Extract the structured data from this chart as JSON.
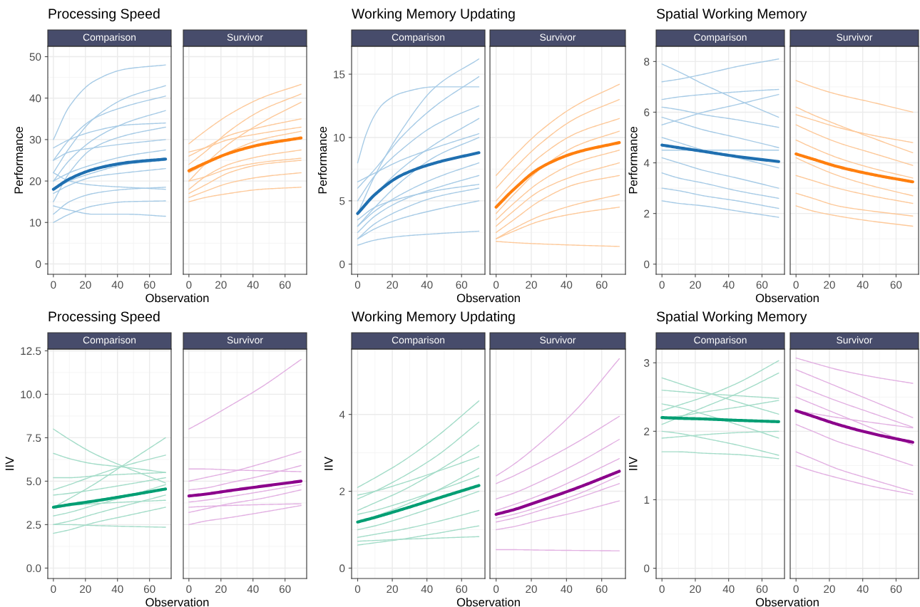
{
  "chart_data": [
    {
      "type": "line",
      "title": "Processing Speed",
      "subtitle": "Comparison",
      "xlabel": "Observation",
      "ylabel": "Performance",
      "x": [
        0,
        10,
        25,
        45,
        70
      ],
      "xlim": [
        -3.5,
        73.5
      ],
      "xticks": [
        0,
        20,
        40,
        60
      ],
      "ylim": [
        -2.5,
        52.5
      ],
      "yticks": [
        0,
        10,
        20,
        30,
        40,
        50
      ],
      "grid": true,
      "series": [
        {
          "color": "#a7cbe6",
          "values": [
            30,
            38,
            44,
            47,
            48
          ]
        },
        {
          "color": "#a7cbe6",
          "values": [
            22,
            28,
            35,
            40,
            43
          ]
        },
        {
          "color": "#a7cbe6",
          "values": [
            25,
            30,
            35,
            38,
            40.5
          ]
        },
        {
          "color": "#a7cbe6",
          "values": [
            20,
            25,
            30,
            34,
            37
          ]
        },
        {
          "color": "#a7cbe6",
          "values": [
            28,
            30,
            32,
            33.5,
            34
          ]
        },
        {
          "color": "#a7cbe6",
          "values": [
            15,
            22,
            28,
            31,
            33
          ]
        },
        {
          "color": "#a7cbe6",
          "values": [
            20,
            22,
            24,
            26,
            27.5
          ]
        },
        {
          "color": "#a7cbe6",
          "values": [
            17,
            19,
            21,
            22,
            23
          ]
        },
        {
          "color": "#a7cbe6",
          "values": [
            12,
            15,
            17,
            18,
            18.5
          ]
        },
        {
          "color": "#a7cbe6",
          "values": [
            10,
            12,
            14,
            15,
            15.2
          ]
        },
        {
          "color": "#a7cbe6",
          "values": [
            14,
            13,
            12,
            12,
            11.5
          ]
        },
        {
          "color": "#a7cbe6",
          "values": [
            22,
            20,
            19,
            18.5,
            18
          ]
        },
        {
          "color": "#a7cbe6",
          "values": [
            18,
            20,
            22,
            24,
            25
          ]
        },
        {
          "color": "#a7cbe6",
          "values": [
            25,
            27,
            28,
            29,
            30
          ]
        },
        {
          "color": "#1f6fb0",
          "values": [
            18,
            20.5,
            22.8,
            24.4,
            25.3
          ]
        }
      ]
    },
    {
      "type": "line",
      "subtitle": "Survivor",
      "x": [
        0,
        10,
        25,
        45,
        70
      ],
      "xlim": [
        -3.5,
        73.5
      ],
      "xticks": [
        0,
        20,
        40,
        60
      ],
      "ylim": [
        -2.5,
        52.5
      ],
      "yticks": [
        0,
        10,
        20,
        30,
        40,
        50
      ],
      "grid": true,
      "tick_labels": "x",
      "series": [
        {
          "color": "#fdc99a",
          "values": [
            29,
            32,
            36,
            40,
            43.3
          ]
        },
        {
          "color": "#fdc99a",
          "values": [
            24,
            27,
            32,
            37,
            41
          ]
        },
        {
          "color": "#fdc99a",
          "values": [
            20,
            24,
            29,
            34,
            39
          ]
        },
        {
          "color": "#fdc99a",
          "values": [
            26,
            28,
            31,
            33,
            35
          ]
        },
        {
          "color": "#fdc99a",
          "values": [
            22,
            24,
            27,
            30,
            32
          ]
        },
        {
          "color": "#fdc99a",
          "values": [
            18,
            21,
            24,
            26,
            27.5
          ]
        },
        {
          "color": "#fdc99a",
          "values": [
            20,
            21,
            23,
            24.5,
            25.5
          ]
        },
        {
          "color": "#fdc99a",
          "values": [
            16,
            17.5,
            19.5,
            21,
            22
          ]
        },
        {
          "color": "#fdc99a",
          "values": [
            15,
            16,
            17,
            18,
            18.5
          ]
        },
        {
          "color": "#fdc99a",
          "values": [
            17,
            19,
            22,
            24,
            25
          ]
        },
        {
          "color": "#fdc99a",
          "values": [
            27,
            28,
            30,
            31.5,
            33
          ]
        },
        {
          "color": "#ff7f0e",
          "values": [
            22.5,
            24.3,
            26.7,
            28.8,
            30.4
          ]
        }
      ]
    },
    {
      "type": "line",
      "title": "Working Memory Updating",
      "subtitle": "Comparison",
      "xlabel": "Observation",
      "ylabel": "Performance",
      "x": [
        0,
        10,
        25,
        45,
        70
      ],
      "xlim": [
        -3.5,
        73.5
      ],
      "xticks": [
        0,
        20,
        40,
        60
      ],
      "ylim": [
        -0.8,
        17.2
      ],
      "yticks": [
        0,
        5,
        10,
        15
      ],
      "grid": true,
      "series": [
        {
          "color": "#a7cbe6",
          "x": [
            0,
            5,
            10,
            15,
            25,
            45,
            70
          ],
          "values": [
            8,
            10.3,
            11.8,
            12.7,
            13.5,
            14,
            14
          ]
        },
        {
          "color": "#a7cbe6",
          "values": [
            4,
            7,
            10.5,
            14,
            16.2
          ]
        },
        {
          "color": "#a7cbe6",
          "values": [
            6,
            7.5,
            10,
            12.5,
            14.8
          ]
        },
        {
          "color": "#a7cbe6",
          "values": [
            5,
            7,
            9,
            11,
            12.5
          ]
        },
        {
          "color": "#a7cbe6",
          "values": [
            4,
            5.5,
            7.5,
            9.5,
            11.5
          ]
        },
        {
          "color": "#a7cbe6",
          "values": [
            3,
            4.5,
            6.5,
            8.5,
            10
          ]
        },
        {
          "color": "#a7cbe6",
          "values": [
            3,
            4.2,
            5.5,
            6.8,
            8
          ]
        },
        {
          "color": "#a7cbe6",
          "values": [
            2.5,
            3.8,
            5,
            6,
            7
          ]
        },
        {
          "color": "#a7cbe6",
          "values": [
            2,
            3.2,
            4.3,
            5.3,
            6
          ]
        },
        {
          "color": "#a7cbe6",
          "values": [
            2,
            2.8,
            3.6,
            4.3,
            5
          ]
        },
        {
          "color": "#a7cbe6",
          "values": [
            1.5,
            1.9,
            2.2,
            2.4,
            2.6
          ]
        },
        {
          "color": "#a7cbe6",
          "values": [
            6.5,
            7.2,
            8.2,
            9.2,
            10.3
          ]
        },
        {
          "color": "#a7cbe6",
          "values": [
            3.5,
            4.5,
            5.2,
            5.8,
            6.3
          ]
        },
        {
          "color": "#1f6fb0",
          "values": [
            4,
            5.5,
            7,
            8,
            8.8
          ]
        }
      ]
    },
    {
      "type": "line",
      "subtitle": "Survivor",
      "x": [
        0,
        10,
        25,
        45,
        70
      ],
      "xlim": [
        -3.5,
        73.5
      ],
      "xticks": [
        0,
        20,
        40,
        60
      ],
      "ylim": [
        -0.8,
        17.2
      ],
      "yticks": [
        0,
        5,
        10,
        15
      ],
      "grid": true,
      "tick_labels": "x",
      "series": [
        {
          "color": "#fdc99a",
          "values": [
            7,
            8.5,
            10.5,
            12.5,
            14.2
          ]
        },
        {
          "color": "#fdc99a",
          "values": [
            6,
            7.5,
            9.5,
            11.5,
            13
          ]
        },
        {
          "color": "#fdc99a",
          "values": [
            5,
            6.5,
            8.5,
            10.3,
            11.5
          ]
        },
        {
          "color": "#fdc99a",
          "values": [
            4,
            5.5,
            7.5,
            9.3,
            10.5
          ]
        },
        {
          "color": "#fdc99a",
          "values": [
            3.5,
            4.8,
            6.5,
            8,
            9
          ]
        },
        {
          "color": "#fdc99a",
          "values": [
            3,
            4.2,
            5.8,
            7,
            8
          ]
        },
        {
          "color": "#fdc99a",
          "values": [
            2.5,
            3.5,
            5,
            6.3,
            7
          ]
        },
        {
          "color": "#fdc99a",
          "values": [
            2,
            2.8,
            3.8,
            4.7,
            5.5
          ]
        },
        {
          "color": "#fdc99a",
          "values": [
            2,
            2.6,
            3.4,
            4,
            4.5
          ]
        },
        {
          "color": "#fdc99a",
          "values": [
            1.8,
            1.7,
            1.6,
            1.5,
            1.4
          ]
        },
        {
          "color": "#ff7f0e",
          "values": [
            4.5,
            5.9,
            7.6,
            8.8,
            9.6
          ]
        }
      ]
    },
    {
      "type": "line",
      "title": "Spatial Working Memory",
      "subtitle": "Comparison",
      "xlabel": "Observation",
      "ylabel": "Performance",
      "x": [
        0,
        10,
        25,
        45,
        70
      ],
      "xlim": [
        -3.5,
        73.5
      ],
      "xticks": [
        0,
        20,
        40,
        60
      ],
      "ylim": [
        -0.4,
        8.6
      ],
      "yticks": [
        0,
        2,
        4,
        6,
        8
      ],
      "grid": true,
      "series": [
        {
          "color": "#a7cbe6",
          "values": [
            7.9,
            7.6,
            7.1,
            6.5,
            5.8
          ]
        },
        {
          "color": "#a7cbe6",
          "values": [
            7.2,
            7.3,
            7.5,
            7.8,
            8.1
          ]
        },
        {
          "color": "#a7cbe6",
          "values": [
            6.5,
            6.6,
            6.7,
            6.8,
            6.9
          ]
        },
        {
          "color": "#a7cbe6",
          "values": [
            5.5,
            5.7,
            6,
            6.3,
            6.7
          ]
        },
        {
          "color": "#a7cbe6",
          "values": [
            6.2,
            6.1,
            5.9,
            5.7,
            5.4
          ]
        },
        {
          "color": "#a7cbe6",
          "values": [
            5.8,
            5.6,
            5.3,
            5,
            4.6
          ]
        },
        {
          "color": "#a7cbe6",
          "values": [
            5,
            4.8,
            4.5,
            4.2,
            3.8
          ]
        },
        {
          "color": "#a7cbe6",
          "values": [
            4.2,
            4,
            3.7,
            3.4,
            3
          ]
        },
        {
          "color": "#a7cbe6",
          "values": [
            3.6,
            3.4,
            3.2,
            2.9,
            2.6
          ]
        },
        {
          "color": "#a7cbe6",
          "values": [
            3,
            2.9,
            2.7,
            2.5,
            2.2
          ]
        },
        {
          "color": "#a7cbe6",
          "values": [
            2.5,
            2.4,
            2.3,
            2.1,
            1.85
          ]
        },
        {
          "color": "#a7cbe6",
          "values": [
            4.5,
            4.5,
            4.5,
            4.5,
            4.5
          ]
        },
        {
          "color": "#1f6fb0",
          "values": [
            4.7,
            4.6,
            4.45,
            4.25,
            4.05
          ]
        }
      ]
    },
    {
      "type": "line",
      "subtitle": "Survivor",
      "x": [
        0,
        10,
        25,
        45,
        70
      ],
      "xlim": [
        -3.5,
        73.5
      ],
      "xticks": [
        0,
        20,
        40,
        60
      ],
      "ylim": [
        -0.4,
        8.6
      ],
      "yticks": [
        0,
        2,
        4,
        6,
        8
      ],
      "grid": true,
      "tick_labels": "x",
      "series": [
        {
          "color": "#fdc99a",
          "values": [
            7.25,
            7,
            6.7,
            6.4,
            6
          ]
        },
        {
          "color": "#fdc99a",
          "values": [
            6.2,
            5.9,
            5.5,
            5,
            4.4
          ]
        },
        {
          "color": "#fdc99a",
          "values": [
            5.5,
            5.2,
            4.8,
            4.4,
            3.9
          ]
        },
        {
          "color": "#fdc99a",
          "values": [
            4.9,
            4.6,
            4.2,
            3.8,
            3.4
          ]
        },
        {
          "color": "#fdc99a",
          "values": [
            4.2,
            3.9,
            3.5,
            3.1,
            2.7
          ]
        },
        {
          "color": "#fdc99a",
          "values": [
            3.5,
            3.3,
            3,
            2.7,
            2.4
          ]
        },
        {
          "color": "#fdc99a",
          "values": [
            2.8,
            2.6,
            2.3,
            2.1,
            1.9
          ]
        },
        {
          "color": "#fdc99a",
          "values": [
            2.3,
            2.1,
            1.9,
            1.7,
            1.5
          ]
        },
        {
          "color": "#fdc99a",
          "values": [
            5.9,
            5.7,
            5.4,
            5.1,
            4.8
          ]
        },
        {
          "color": "#ff7f0e",
          "values": [
            4.35,
            4.15,
            3.85,
            3.55,
            3.25
          ]
        }
      ]
    },
    {
      "type": "line",
      "title": "Processing Speed",
      "subtitle": "Comparison",
      "xlabel": "Observation",
      "ylabel": "IIV",
      "x": [
        0,
        10,
        25,
        45,
        70
      ],
      "xlim": [
        -3.5,
        73.5
      ],
      "xticks": [
        0,
        20,
        40,
        60
      ],
      "ylim": [
        -0.6,
        12.6
      ],
      "yticks": [
        {
          "value": 0,
          "label": "0.0"
        },
        2.5,
        {
          "value": 5,
          "label": "5.0"
        },
        7.5,
        {
          "value": 10,
          "label": "10.0"
        },
        12.5
      ],
      "grid": true,
      "series": [
        {
          "color": "#a3dcc8",
          "values": [
            8,
            7.4,
            6.6,
            5.8,
            4.9
          ]
        },
        {
          "color": "#a3dcc8",
          "values": [
            6.6,
            6.3,
            6,
            5.8,
            5.5
          ]
        },
        {
          "color": "#a3dcc8",
          "values": [
            4.5,
            4.8,
            5.3,
            5.9,
            6.5
          ]
        },
        {
          "color": "#a3dcc8",
          "values": [
            3.5,
            4,
            4.8,
            6,
            7.5
          ]
        },
        {
          "color": "#a3dcc8",
          "values": [
            5.2,
            5.2,
            5.3,
            5.4,
            5.5
          ]
        },
        {
          "color": "#a3dcc8",
          "values": [
            4.2,
            4.3,
            4.5,
            4.8,
            5.2
          ]
        },
        {
          "color": "#a3dcc8",
          "values": [
            3,
            3.2,
            3.6,
            4.1,
            4.8
          ]
        },
        {
          "color": "#a3dcc8",
          "values": [
            2.5,
            2.7,
            3.1,
            3.6,
            4.2
          ]
        },
        {
          "color": "#a3dcc8",
          "values": [
            2,
            2.2,
            2.6,
            3,
            3.5
          ]
        },
        {
          "color": "#a3dcc8",
          "values": [
            2.5,
            2.5,
            2.45,
            2.4,
            2.35
          ]
        },
        {
          "color": "#a3dcc8",
          "values": [
            3.5,
            3.6,
            3.7,
            3.8,
            3.9
          ]
        },
        {
          "color": "#009e73",
          "values": [
            3.5,
            3.65,
            3.85,
            4.15,
            4.55
          ]
        }
      ]
    },
    {
      "type": "line",
      "subtitle": "Survivor",
      "x": [
        0,
        10,
        25,
        45,
        70
      ],
      "xlim": [
        -3.5,
        73.5
      ],
      "xticks": [
        0,
        20,
        40,
        60
      ],
      "ylim": [
        -0.6,
        12.6
      ],
      "yticks": [
        0,
        2.5,
        5,
        7.5,
        10,
        12.5
      ],
      "grid": true,
      "tick_labels": "x",
      "series": [
        {
          "color": "#e2b0e2",
          "values": [
            8,
            8.5,
            9.3,
            10.4,
            12
          ]
        },
        {
          "color": "#e2b0e2",
          "values": [
            5.7,
            5.7,
            5.65,
            5.6,
            5.55
          ]
        },
        {
          "color": "#e2b0e2",
          "values": [
            5,
            5.2,
            5.5,
            6,
            6.7
          ]
        },
        {
          "color": "#e2b0e2",
          "values": [
            4.5,
            4.6,
            4.9,
            5.3,
            5.9
          ]
        },
        {
          "color": "#e2b0e2",
          "values": [
            3.8,
            3.9,
            4.1,
            4.4,
            4.8
          ]
        },
        {
          "color": "#e2b0e2",
          "values": [
            3.2,
            3.4,
            3.7,
            4,
            4.5
          ]
        },
        {
          "color": "#e2b0e2",
          "values": [
            2.5,
            2.7,
            2.9,
            3.2,
            3.6
          ]
        },
        {
          "color": "#e2b0e2",
          "values": [
            3.5,
            3.55,
            3.6,
            3.65,
            3.7
          ]
        },
        {
          "color": "#8b008b",
          "values": [
            4.15,
            4.25,
            4.45,
            4.7,
            5
          ]
        }
      ]
    },
    {
      "type": "line",
      "title": "Working Memory Updating",
      "subtitle": "Comparison",
      "xlabel": "Observation",
      "ylabel": "IIV",
      "x": [
        0,
        10,
        25,
        45,
        70
      ],
      "xlim": [
        -3.5,
        73.5
      ],
      "xticks": [
        0,
        20,
        40,
        60
      ],
      "ylim": [
        -0.27,
        5.7
      ],
      "yticks": [
        0,
        2,
        4
      ],
      "grid": true,
      "series": [
        {
          "color": "#a3dcc8",
          "values": [
            2.1,
            2.35,
            2.75,
            3.4,
            4.35
          ]
        },
        {
          "color": "#a3dcc8",
          "values": [
            1.8,
            2,
            2.35,
            2.9,
            3.8
          ]
        },
        {
          "color": "#a3dcc8",
          "values": [
            1.5,
            1.7,
            2,
            2.5,
            3.2
          ]
        },
        {
          "color": "#a3dcc8",
          "values": [
            1.2,
            1.35,
            1.6,
            2,
            2.6
          ]
        },
        {
          "color": "#a3dcc8",
          "values": [
            1,
            1.1,
            1.3,
            1.6,
            2
          ]
        },
        {
          "color": "#a3dcc8",
          "values": [
            0.8,
            0.88,
            1,
            1.2,
            1.5
          ]
        },
        {
          "color": "#a3dcc8",
          "values": [
            0.6,
            0.66,
            0.75,
            0.9,
            1.1
          ]
        },
        {
          "color": "#a3dcc8",
          "values": [
            0.7,
            0.72,
            0.75,
            0.78,
            0.82
          ]
        },
        {
          "color": "#a3dcc8",
          "values": [
            1.9,
            2,
            2.2,
            2.5,
            2.9
          ]
        },
        {
          "color": "#a3dcc8",
          "values": [
            1.4,
            1.5,
            1.7,
            2,
            2.4
          ]
        },
        {
          "color": "#009e73",
          "values": [
            1.2,
            1.32,
            1.52,
            1.8,
            2.15
          ]
        }
      ]
    },
    {
      "type": "line",
      "subtitle": "Survivor",
      "x": [
        0,
        10,
        25,
        45,
        70
      ],
      "xlim": [
        -3.5,
        73.5
      ],
      "xticks": [
        0,
        20,
        40,
        60
      ],
      "ylim": [
        -0.27,
        5.7
      ],
      "yticks": [
        0,
        2,
        4
      ],
      "grid": true,
      "tick_labels": "x",
      "series": [
        {
          "color": "#e2b0e2",
          "values": [
            2.4,
            2.7,
            3.25,
            4.1,
            5.45
          ]
        },
        {
          "color": "#e2b0e2",
          "values": [
            2.2,
            2.4,
            2.75,
            3.25,
            3.95
          ]
        },
        {
          "color": "#e2b0e2",
          "values": [
            1.8,
            1.95,
            2.25,
            2.7,
            3.35
          ]
        },
        {
          "color": "#e2b0e2",
          "values": [
            1.5,
            1.65,
            1.9,
            2.3,
            2.85
          ]
        },
        {
          "color": "#e2b0e2",
          "values": [
            1.2,
            1.3,
            1.5,
            1.8,
            2.2
          ]
        },
        {
          "color": "#e2b0e2",
          "values": [
            1,
            1.08,
            1.25,
            1.45,
            1.75
          ]
        },
        {
          "color": "#e2b0e2",
          "values": [
            0.48,
            0.48,
            0.47,
            0.46,
            0.45
          ]
        },
        {
          "color": "#e2b0e2",
          "values": [
            1.3,
            1.4,
            1.6,
            1.9,
            2.4
          ]
        },
        {
          "color": "#8b008b",
          "values": [
            1.4,
            1.52,
            1.75,
            2.07,
            2.52
          ]
        }
      ]
    },
    {
      "type": "line",
      "title": "Spatial Working Memory",
      "subtitle": "Comparison",
      "xlabel": "Observation",
      "ylabel": "IIV",
      "x": [
        0,
        10,
        25,
        45,
        70
      ],
      "xlim": [
        -3.5,
        73.5
      ],
      "xticks": [
        0,
        20,
        40,
        60
      ],
      "ylim": [
        -0.15,
        3.2
      ],
      "yticks": [
        0,
        1,
        2,
        3
      ],
      "grid": true,
      "series": [
        {
          "color": "#a3dcc8",
          "values": [
            2.78,
            2.7,
            2.58,
            2.43,
            2.25
          ]
        },
        {
          "color": "#a3dcc8",
          "values": [
            2.6,
            2.58,
            2.55,
            2.52,
            2.48
          ]
        },
        {
          "color": "#a3dcc8",
          "values": [
            2.3,
            2.38,
            2.5,
            2.7,
            3.03
          ]
        },
        {
          "color": "#a3dcc8",
          "values": [
            2.1,
            2.2,
            2.35,
            2.55,
            2.85
          ]
        },
        {
          "color": "#a3dcc8",
          "values": [
            2.4,
            2.35,
            2.25,
            2.1,
            1.9
          ]
        },
        {
          "color": "#a3dcc8",
          "values": [
            1.9,
            1.92,
            1.95,
            1.98,
            2
          ]
        },
        {
          "color": "#a3dcc8",
          "values": [
            1.7,
            1.7,
            1.68,
            1.66,
            1.6
          ]
        },
        {
          "color": "#a3dcc8",
          "values": [
            2,
            1.97,
            1.9,
            1.8,
            1.65
          ]
        },
        {
          "color": "#a3dcc8",
          "values": [
            2.2,
            2.22,
            2.28,
            2.35,
            2.45
          ]
        },
        {
          "color": "#009e73",
          "values": [
            2.2,
            2.19,
            2.18,
            2.16,
            2.14
          ]
        }
      ]
    },
    {
      "type": "line",
      "subtitle": "Survivor",
      "x": [
        0,
        10,
        25,
        45,
        70
      ],
      "xlim": [
        -3.5,
        73.5
      ],
      "xticks": [
        0,
        20,
        40,
        60
      ],
      "ylim": [
        -0.15,
        3.2
      ],
      "yticks": [
        0,
        1,
        2,
        3
      ],
      "grid": true,
      "tick_labels": "x",
      "series": [
        {
          "color": "#e2b0e2",
          "values": [
            3.07,
            3,
            2.9,
            2.8,
            2.7
          ]
        },
        {
          "color": "#e2b0e2",
          "values": [
            2.9,
            2.8,
            2.65,
            2.45,
            2.2
          ]
        },
        {
          "color": "#e2b0e2",
          "values": [
            2.68,
            2.58,
            2.44,
            2.27,
            2.06
          ]
        },
        {
          "color": "#e2b0e2",
          "values": [
            2.5,
            2.4,
            2.25,
            2.05,
            1.8
          ]
        },
        {
          "color": "#e2b0e2",
          "values": [
            2.1,
            2,
            1.85,
            1.7,
            1.5
          ]
        },
        {
          "color": "#e2b0e2",
          "values": [
            1.7,
            1.6,
            1.45,
            1.3,
            1.12
          ]
        },
        {
          "color": "#e2b0e2",
          "values": [
            1.5,
            1.42,
            1.32,
            1.2,
            1.08
          ]
        },
        {
          "color": "#e2b0e2",
          "values": [
            2.3,
            2.26,
            2.2,
            2.13,
            2.05
          ]
        },
        {
          "color": "#8b008b",
          "values": [
            2.3,
            2.22,
            2.1,
            1.97,
            1.84
          ]
        }
      ]
    }
  ]
}
